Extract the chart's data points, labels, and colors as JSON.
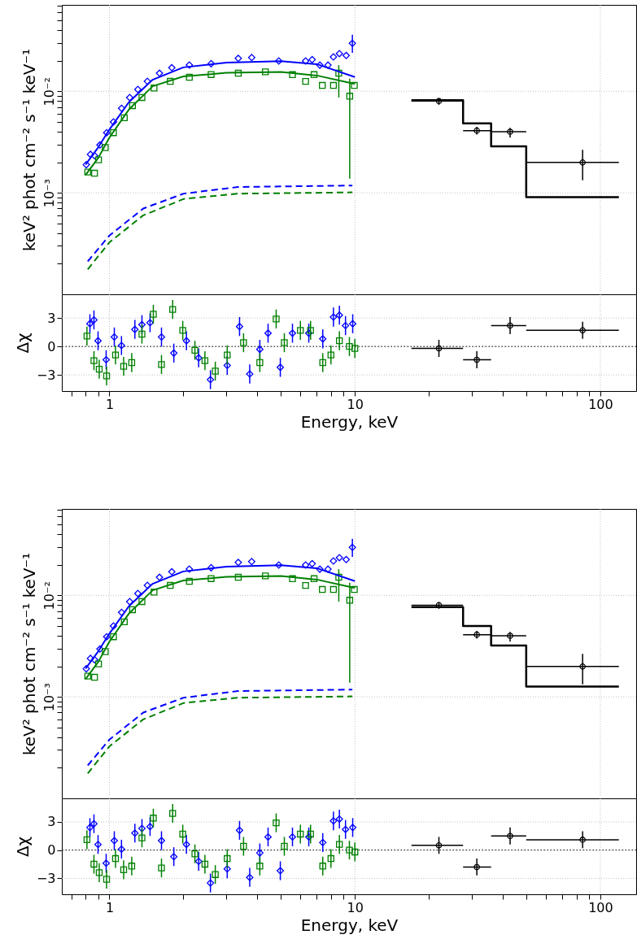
{
  "chart_data": [
    {
      "type": "scatter",
      "ylabel": "keV² phot cm⁻² s⁻¹ keV⁻¹",
      "log": "xy",
      "xlim": [
        0.64,
        140
      ],
      "ylim": [
        0.0001,
        0.071
      ],
      "tick_labels": "y",
      "grid": true,
      "xticks": [
        {
          "value": 0.7,
          "label": null
        },
        {
          "value": 0.8,
          "label": null
        },
        {
          "value": 0.9,
          "label": null
        },
        1,
        {
          "value": 2,
          "label": null
        },
        {
          "value": 3,
          "label": null
        },
        {
          "value": 4,
          "label": null
        },
        {
          "value": 5,
          "label": null
        },
        {
          "value": 6,
          "label": null
        },
        {
          "value": 7,
          "label": null
        },
        {
          "value": 8,
          "label": null
        },
        {
          "value": 9,
          "label": null
        },
        10,
        {
          "value": 20,
          "label": null
        },
        {
          "value": 30,
          "label": null
        },
        {
          "value": 40,
          "label": null
        },
        {
          "value": 50,
          "label": null
        },
        {
          "value": 60,
          "label": null
        },
        {
          "value": 70,
          "label": null
        },
        {
          "value": 80,
          "label": null
        },
        {
          "value": 90,
          "label": null
        },
        100
      ],
      "yticks": [
        {
          "value": 0.0002,
          "label": null
        },
        {
          "value": 0.0003,
          "label": null
        },
        {
          "value": 0.0004,
          "label": null
        },
        {
          "value": 0.0005,
          "label": null
        },
        {
          "value": 0.0006,
          "label": null
        },
        {
          "value": 0.0007,
          "label": null
        },
        {
          "value": 0.0008,
          "label": null
        },
        {
          "value": 0.0009,
          "label": null
        },
        {
          "value": 0.001,
          "label": "10⁻³"
        },
        {
          "value": 0.002,
          "label": null
        },
        {
          "value": 0.003,
          "label": null
        },
        {
          "value": 0.004,
          "label": null
        },
        {
          "value": 0.005,
          "label": null
        },
        {
          "value": 0.006,
          "label": null
        },
        {
          "value": 0.007,
          "label": null
        },
        {
          "value": 0.008,
          "label": null
        },
        {
          "value": 0.009,
          "label": null
        },
        {
          "value": 0.01,
          "label": "10⁻²"
        },
        {
          "value": 0.02,
          "label": null
        },
        {
          "value": 0.03,
          "label": null
        },
        {
          "value": 0.04,
          "label": null
        },
        {
          "value": 0.05,
          "label": null
        },
        {
          "value": 0.06,
          "label": null
        },
        {
          "value": 0.07,
          "label": null
        }
      ],
      "series": [
        {
          "color": "#0000ff",
          "marker": "diamond",
          "x": [
            0.805,
            0.837,
            0.87,
            0.915,
            0.975,
            1.039,
            1.121,
            1.21,
            1.306,
            1.428,
            1.6,
            1.796,
            2.117,
            2.596,
            3.35,
            3.8,
            4.9,
            6.3,
            6.7,
            7.2,
            7.77,
            8.18,
            8.65,
            9.22,
            9.77
          ],
          "values": [
            0.00189,
            0.00239,
            0.00232,
            0.00296,
            0.00391,
            0.00499,
            0.00679,
            0.00868,
            0.01043,
            0.01254,
            0.01507,
            0.01706,
            0.01813,
            0.0187,
            0.0211,
            0.0215,
            0.0199,
            0.0199,
            0.0205,
            0.0181,
            0.0181,
            0.0218,
            0.0235,
            0.0225,
            0.0297
          ],
          "errors": [
            null,
            null,
            null,
            null,
            null,
            null,
            null,
            null,
            null,
            null,
            null,
            null,
            null,
            null,
            null,
            null,
            null,
            null,
            null,
            null,
            null,
            null,
            null,
            null,
            [
              0.0239,
              0.0361
            ]
          ]
        },
        {
          "color": "#008000",
          "marker": "square",
          "x": [
            0.816,
            0.87,
            0.903,
            0.962,
            1.039,
            1.15,
            1.242,
            1.357,
            1.52,
            1.77,
            2.117,
            2.596,
            3.35,
            4.32,
            5.57,
            6.3,
            6.82,
            7.37,
            8.18,
            8.6,
            9.53,
            9.95
          ],
          "values": [
            0.0016,
            0.00156,
            0.00211,
            0.00279,
            0.00391,
            0.00548,
            0.00722,
            0.00868,
            0.01077,
            0.01254,
            0.01375,
            0.01462,
            0.01507,
            0.01555,
            0.0146,
            0.0125,
            0.0146,
            0.01143,
            0.01143,
            0.01507,
            0.00895,
            0.01143
          ],
          "errors": [
            null,
            null,
            null,
            null,
            null,
            null,
            null,
            null,
            null,
            null,
            null,
            null,
            null,
            null,
            null,
            null,
            null,
            null,
            null,
            [
              0.00868,
              0.0181
            ],
            [
              0.00138,
              0.0133
            ],
            null
          ]
        },
        {
          "type": "line",
          "color": "#0000ff",
          "x": [
            0.8,
            0.9,
            1.0,
            1.2,
            1.5,
            2,
            3,
            5,
            7,
            10
          ],
          "values": [
            0.0019,
            0.0028,
            0.0042,
            0.0078,
            0.013,
            0.0172,
            0.0192,
            0.0198,
            0.0185,
            0.0138
          ]
        },
        {
          "type": "line",
          "color": "#008000",
          "x": [
            0.8,
            0.9,
            1.0,
            1.2,
            1.5,
            2,
            3,
            5,
            7,
            10
          ],
          "values": [
            0.0015,
            0.0022,
            0.0035,
            0.0066,
            0.0112,
            0.014,
            0.0152,
            0.0155,
            0.0143,
            0.0118
          ]
        },
        {
          "type": "line",
          "color": "#0000ff",
          "line_style": "dashed",
          "x": [
            0.816,
            1.0,
            1.374,
            2.01,
            3.34,
            9.77
          ],
          "values": [
            0.000211,
            0.000379,
            0.0007,
            0.000982,
            0.00114,
            0.00118
          ]
        },
        {
          "type": "line",
          "color": "#008000",
          "line_style": "dashed",
          "x": [
            0.816,
            1.0,
            1.374,
            2.01,
            3.35,
            9.77
          ],
          "values": [
            0.000176,
            0.000325,
            0.0006,
            0.00087,
            0.00098,
            0.00101
          ]
        },
        {
          "color": "#000000",
          "marker": "circle",
          "x": [
            22.0,
            31.4,
            42.9,
            84.7
          ],
          "values": [
            0.00802,
            0.0041,
            0.004,
            0.00199
          ],
          "errors": [
            [
              0.00736,
              0.00857
            ],
            [
              0.00375,
              0.00447
            ],
            [
              0.0035,
              0.00436
            ],
            [
              0.00133,
              0.00265
            ]
          ],
          "xerrors": [
            [
              17.0,
              27.6
            ],
            [
              27.6,
              35.9
            ],
            [
              35.9,
              49.9
            ],
            [
              49.9,
              119
            ]
          ]
        },
        {
          "type": "step",
          "color": "#000000",
          "x": [
            17.0,
            27.6,
            35.9,
            49.9,
            119
          ],
          "values": [
            0.00816,
            0.00484,
            0.00287,
            0.000906,
            0.000906
          ]
        }
      ]
    },
    {
      "type": "scatter",
      "xlabel": "Energy, keV",
      "ylabel": "Δχ",
      "log": "x",
      "xlim": [
        0.64,
        140
      ],
      "ylim": [
        -4.7,
        5.5
      ],
      "grid": true,
      "xticks": [
        {
          "value": 0.7,
          "label": null
        },
        {
          "value": 0.8,
          "label": null
        },
        {
          "value": 0.9,
          "label": null
        },
        1,
        {
          "value": 2,
          "label": null
        },
        {
          "value": 3,
          "label": null
        },
        {
          "value": 4,
          "label": null
        },
        {
          "value": 5,
          "label": null
        },
        {
          "value": 6,
          "label": null
        },
        {
          "value": 7,
          "label": null
        },
        {
          "value": 8,
          "label": null
        },
        {
          "value": 9,
          "label": null
        },
        10,
        {
          "value": 20,
          "label": null
        },
        {
          "value": 30,
          "label": null
        },
        {
          "value": 40,
          "label": null
        },
        {
          "value": 50,
          "label": null
        },
        {
          "value": 60,
          "label": null
        },
        {
          "value": 70,
          "label": null
        },
        {
          "value": 80,
          "label": null
        },
        {
          "value": 90,
          "label": null
        },
        100
      ],
      "yticks": [
        {
          "value": -3,
          "label": "−3"
        },
        {
          "value": 0,
          "label": "0"
        },
        {
          "value": 3,
          "label": "3"
        }
      ],
      "ref_lines": [
        {
          "axis": "y",
          "value": 0,
          "color": "#000000",
          "line_style": "dotted"
        }
      ],
      "series": [
        {
          "color": "#0000ff",
          "marker": "diamond",
          "x": [
            0.833,
            0.865,
            0.899,
            0.97,
            1.047,
            1.12,
            1.27,
            1.357,
            1.464,
            1.63,
            1.83,
            2.06,
            2.31,
            2.58,
            3.02,
            3.39,
            3.73,
            4.1,
            4.43,
            4.97,
            5.57,
            6.49,
            7.4,
            8.18,
            8.65,
            9.16,
            9.8
          ],
          "values": [
            2.4,
            2.8,
            0.6,
            -1.4,
            1.0,
            0.1,
            1.8,
            2.3,
            2.5,
            1.0,
            -0.7,
            0.6,
            -1.2,
            -3.5,
            -2.0,
            2.1,
            -2.9,
            -0.3,
            1.4,
            -2.2,
            1.4,
            1.4,
            0.8,
            3.1,
            3.3,
            2.2,
            2.4
          ],
          "errors": [
            1,
            1,
            1,
            1,
            1,
            1,
            1,
            1,
            1,
            1,
            1,
            1,
            1,
            1,
            1,
            1,
            1,
            1,
            1,
            1,
            1,
            1,
            1,
            1,
            1,
            1,
            1
          ]
        },
        {
          "color": "#008000",
          "marker": "square",
          "x": [
            0.81,
            0.865,
            0.909,
            0.974,
            1.059,
            1.143,
            1.233,
            1.357,
            1.51,
            1.63,
            1.81,
            1.99,
            2.23,
            2.45,
            2.7,
            3.02,
            3.52,
            4.1,
            4.78,
            5.16,
            6.0,
            6.6,
            7.4,
            7.99,
            8.65,
            9.5,
            10.0
          ],
          "values": [
            1.1,
            -1.5,
            -2.4,
            -3.1,
            -0.9,
            -2.1,
            -1.7,
            1.3,
            3.4,
            -1.9,
            3.9,
            1.7,
            -0.4,
            -1.5,
            -2.6,
            -0.9,
            0.4,
            -1.7,
            2.9,
            0.4,
            1.7,
            1.7,
            -1.7,
            -0.9,
            0.6,
            0,
            -0.2
          ],
          "errors": [
            1,
            1,
            1,
            1,
            1,
            1,
            1,
            1,
            1,
            1,
            1,
            1,
            1,
            1,
            1,
            1,
            1,
            1,
            1,
            1,
            1,
            1,
            1,
            1,
            1,
            1,
            1
          ]
        },
        {
          "color": "#000000",
          "marker": "circle",
          "x": [
            22.0,
            31.4,
            42.9,
            84.7
          ],
          "values": [
            -0.2,
            -1.4,
            2.2,
            1.7
          ],
          "errors": [
            0.9,
            0.9,
            0.9,
            0.9
          ],
          "xerrors": [
            [
              17.0,
              27.6
            ],
            [
              27.6,
              35.9
            ],
            [
              35.9,
              49.9
            ],
            [
              49.9,
              119
            ]
          ]
        }
      ]
    },
    {
      "type": "scatter",
      "ylabel": "keV² phot cm⁻² s⁻¹ keV⁻¹",
      "log": "xy",
      "xlim": [
        0.64,
        140
      ],
      "ylim": [
        0.0001,
        0.071
      ],
      "tick_labels": "y",
      "grid": true,
      "xticks": [
        {
          "value": 0.7,
          "label": null
        },
        {
          "value": 0.8,
          "label": null
        },
        {
          "value": 0.9,
          "label": null
        },
        1,
        {
          "value": 2,
          "label": null
        },
        {
          "value": 3,
          "label": null
        },
        {
          "value": 4,
          "label": null
        },
        {
          "value": 5,
          "label": null
        },
        {
          "value": 6,
          "label": null
        },
        {
          "value": 7,
          "label": null
        },
        {
          "value": 8,
          "label": null
        },
        {
          "value": 9,
          "label": null
        },
        10,
        {
          "value": 20,
          "label": null
        },
        {
          "value": 30,
          "label": null
        },
        {
          "value": 40,
          "label": null
        },
        {
          "value": 50,
          "label": null
        },
        {
          "value": 60,
          "label": null
        },
        {
          "value": 70,
          "label": null
        },
        {
          "value": 80,
          "label": null
        },
        {
          "value": 90,
          "label": null
        },
        100
      ],
      "yticks": [
        {
          "value": 0.0002,
          "label": null
        },
        {
          "value": 0.0003,
          "label": null
        },
        {
          "value": 0.0004,
          "label": null
        },
        {
          "value": 0.0005,
          "label": null
        },
        {
          "value": 0.0006,
          "label": null
        },
        {
          "value": 0.0007,
          "label": null
        },
        {
          "value": 0.0008,
          "label": null
        },
        {
          "value": 0.0009,
          "label": null
        },
        {
          "value": 0.001,
          "label": "10⁻³"
        },
        {
          "value": 0.002,
          "label": null
        },
        {
          "value": 0.003,
          "label": null
        },
        {
          "value": 0.004,
          "label": null
        },
        {
          "value": 0.005,
          "label": null
        },
        {
          "value": 0.006,
          "label": null
        },
        {
          "value": 0.007,
          "label": null
        },
        {
          "value": 0.008,
          "label": null
        },
        {
          "value": 0.009,
          "label": null
        },
        {
          "value": 0.01,
          "label": "10⁻²"
        },
        {
          "value": 0.02,
          "label": null
        },
        {
          "value": 0.03,
          "label": null
        },
        {
          "value": 0.04,
          "label": null
        },
        {
          "value": 0.05,
          "label": null
        },
        {
          "value": 0.06,
          "label": null
        },
        {
          "value": 0.07,
          "label": null
        }
      ],
      "series": [
        {
          "color": "#0000ff",
          "marker": "diamond",
          "x": [
            0.805,
            0.837,
            0.87,
            0.915,
            0.975,
            1.039,
            1.121,
            1.21,
            1.306,
            1.428,
            1.6,
            1.796,
            2.117,
            2.596,
            3.35,
            3.8,
            4.9,
            6.3,
            6.7,
            7.2,
            7.77,
            8.18,
            8.65,
            9.22,
            9.77
          ],
          "values": [
            0.00189,
            0.00239,
            0.00232,
            0.00296,
            0.00391,
            0.00499,
            0.00679,
            0.00868,
            0.01043,
            0.01254,
            0.01507,
            0.01706,
            0.01813,
            0.0187,
            0.0211,
            0.0215,
            0.0199,
            0.0199,
            0.0205,
            0.0181,
            0.0181,
            0.0218,
            0.0235,
            0.0225,
            0.0297
          ],
          "errors": [
            null,
            null,
            null,
            null,
            null,
            null,
            null,
            null,
            null,
            null,
            null,
            null,
            null,
            null,
            null,
            null,
            null,
            null,
            null,
            null,
            null,
            null,
            null,
            null,
            [
              0.0239,
              0.0361
            ]
          ]
        },
        {
          "color": "#008000",
          "marker": "square",
          "x": [
            0.816,
            0.87,
            0.903,
            0.962,
            1.039,
            1.15,
            1.242,
            1.357,
            1.52,
            1.77,
            2.117,
            2.596,
            3.35,
            4.32,
            5.57,
            6.3,
            6.82,
            7.37,
            8.18,
            8.6,
            9.53,
            9.95
          ],
          "values": [
            0.0016,
            0.00156,
            0.00211,
            0.00279,
            0.00391,
            0.00548,
            0.00722,
            0.00868,
            0.01077,
            0.01254,
            0.01375,
            0.01462,
            0.01507,
            0.01555,
            0.0146,
            0.0125,
            0.0146,
            0.01143,
            0.01143,
            0.01507,
            0.00895,
            0.01143
          ],
          "errors": [
            null,
            null,
            null,
            null,
            null,
            null,
            null,
            null,
            null,
            null,
            null,
            null,
            null,
            null,
            null,
            null,
            null,
            null,
            null,
            [
              0.00868,
              0.0181
            ],
            [
              0.00138,
              0.0133
            ],
            null
          ]
        },
        {
          "type": "line",
          "color": "#0000ff",
          "x": [
            0.8,
            0.9,
            1.0,
            1.2,
            1.5,
            2,
            3,
            5,
            7,
            10
          ],
          "values": [
            0.0019,
            0.0028,
            0.0042,
            0.0078,
            0.013,
            0.0172,
            0.0192,
            0.0198,
            0.0185,
            0.0138
          ]
        },
        {
          "type": "line",
          "color": "#008000",
          "x": [
            0.8,
            0.9,
            1.0,
            1.2,
            1.5,
            2,
            3,
            5,
            7,
            10
          ],
          "values": [
            0.0015,
            0.0022,
            0.0035,
            0.0066,
            0.0112,
            0.014,
            0.0152,
            0.0155,
            0.0143,
            0.0118
          ]
        },
        {
          "type": "line",
          "color": "#0000ff",
          "line_style": "dashed",
          "x": [
            0.816,
            1.0,
            1.374,
            2.01,
            3.34,
            9.77
          ],
          "values": [
            0.000211,
            0.000379,
            0.0007,
            0.000982,
            0.00114,
            0.00118
          ]
        },
        {
          "type": "line",
          "color": "#008000",
          "line_style": "dashed",
          "x": [
            0.816,
            1.0,
            1.374,
            2.01,
            3.35,
            9.77
          ],
          "values": [
            0.000176,
            0.000325,
            0.0006,
            0.00087,
            0.00098,
            0.00101
          ]
        },
        {
          "color": "#000000",
          "marker": "circle",
          "x": [
            22.0,
            31.4,
            42.9,
            84.7
          ],
          "values": [
            0.008,
            0.0041,
            0.004,
            0.00199
          ],
          "errors": [
            [
              0.00736,
              0.00857
            ],
            [
              0.00375,
              0.00447
            ],
            [
              0.0035,
              0.00436
            ],
            [
              0.00133,
              0.00265
            ]
          ],
          "xerrors": [
            [
              17.0,
              27.6
            ],
            [
              27.6,
              35.9
            ],
            [
              35.9,
              49.9
            ],
            [
              49.9,
              119
            ]
          ]
        },
        {
          "type": "step",
          "color": "#000000",
          "x": [
            17.0,
            27.6,
            35.9,
            49.9,
            119
          ],
          "values": [
            0.00767,
            0.00499,
            0.00321,
            0.00126,
            0.00126
          ]
        }
      ]
    },
    {
      "type": "scatter",
      "xlabel": "Energy, keV",
      "ylabel": "Δχ",
      "log": "x",
      "xlim": [
        0.64,
        140
      ],
      "ylim": [
        -4.7,
        5.5
      ],
      "grid": true,
      "xticks": [
        {
          "value": 0.7,
          "label": null
        },
        {
          "value": 0.8,
          "label": null
        },
        {
          "value": 0.9,
          "label": null
        },
        1,
        {
          "value": 2,
          "label": null
        },
        {
          "value": 3,
          "label": null
        },
        {
          "value": 4,
          "label": null
        },
        {
          "value": 5,
          "label": null
        },
        {
          "value": 6,
          "label": null
        },
        {
          "value": 7,
          "label": null
        },
        {
          "value": 8,
          "label": null
        },
        {
          "value": 9,
          "label": null
        },
        10,
        {
          "value": 20,
          "label": null
        },
        {
          "value": 30,
          "label": null
        },
        {
          "value": 40,
          "label": null
        },
        {
          "value": 50,
          "label": null
        },
        {
          "value": 60,
          "label": null
        },
        {
          "value": 70,
          "label": null
        },
        {
          "value": 80,
          "label": null
        },
        {
          "value": 90,
          "label": null
        },
        100
      ],
      "yticks": [
        {
          "value": -3,
          "label": "−3"
        },
        {
          "value": 0,
          "label": "0"
        },
        {
          "value": 3,
          "label": "3"
        }
      ],
      "ref_lines": [
        {
          "axis": "y",
          "value": 0,
          "color": "#000000",
          "line_style": "dotted"
        }
      ],
      "series": [
        {
          "color": "#0000ff",
          "marker": "diamond",
          "x": [
            0.833,
            0.865,
            0.899,
            0.97,
            1.047,
            1.12,
            1.27,
            1.357,
            1.464,
            1.63,
            1.83,
            2.06,
            2.31,
            2.58,
            3.02,
            3.39,
            3.73,
            4.1,
            4.43,
            4.97,
            5.57,
            6.49,
            7.4,
            8.18,
            8.65,
            9.16,
            9.8
          ],
          "values": [
            2.4,
            2.8,
            0.6,
            -1.4,
            1.0,
            0.1,
            1.8,
            2.3,
            2.5,
            1.0,
            -0.7,
            0.6,
            -1.2,
            -3.5,
            -2.0,
            2.1,
            -2.9,
            -0.3,
            1.4,
            -2.2,
            1.4,
            1.4,
            0.8,
            3.1,
            3.3,
            2.2,
            2.4
          ],
          "errors": [
            1,
            1,
            1,
            1,
            1,
            1,
            1,
            1,
            1,
            1,
            1,
            1,
            1,
            1,
            1,
            1,
            1,
            1,
            1,
            1,
            1,
            1,
            1,
            1,
            1,
            1,
            1
          ]
        },
        {
          "color": "#008000",
          "marker": "square",
          "x": [
            0.81,
            0.865,
            0.909,
            0.974,
            1.059,
            1.143,
            1.233,
            1.357,
            1.51,
            1.63,
            1.81,
            1.99,
            2.23,
            2.45,
            2.7,
            3.02,
            3.52,
            4.1,
            4.78,
            5.16,
            6.0,
            6.6,
            7.4,
            7.99,
            8.65,
            9.5,
            10.0
          ],
          "values": [
            1.1,
            -1.5,
            -2.4,
            -3.1,
            -0.9,
            -2.1,
            -1.7,
            1.3,
            3.4,
            -1.9,
            3.9,
            1.7,
            -0.4,
            -1.5,
            -2.6,
            -0.9,
            0.4,
            -1.7,
            2.9,
            0.4,
            1.7,
            1.7,
            -1.7,
            -0.9,
            0.6,
            0,
            -0.2
          ],
          "errors": [
            1,
            1,
            1,
            1,
            1,
            1,
            1,
            1,
            1,
            1,
            1,
            1,
            1,
            1,
            1,
            1,
            1,
            1,
            1,
            1,
            1,
            1,
            1,
            1,
            1,
            1,
            1
          ]
        },
        {
          "color": "#000000",
          "marker": "circle",
          "x": [
            22.0,
            31.4,
            42.9,
            84.7
          ],
          "values": [
            0.5,
            -1.8,
            1.5,
            1.1
          ],
          "errors": [
            0.9,
            0.9,
            0.9,
            0.9
          ],
          "xerrors": [
            [
              17.0,
              27.6
            ],
            [
              27.6,
              35.9
            ],
            [
              35.9,
              49.9
            ],
            [
              49.9,
              119
            ]
          ]
        }
      ]
    }
  ]
}
